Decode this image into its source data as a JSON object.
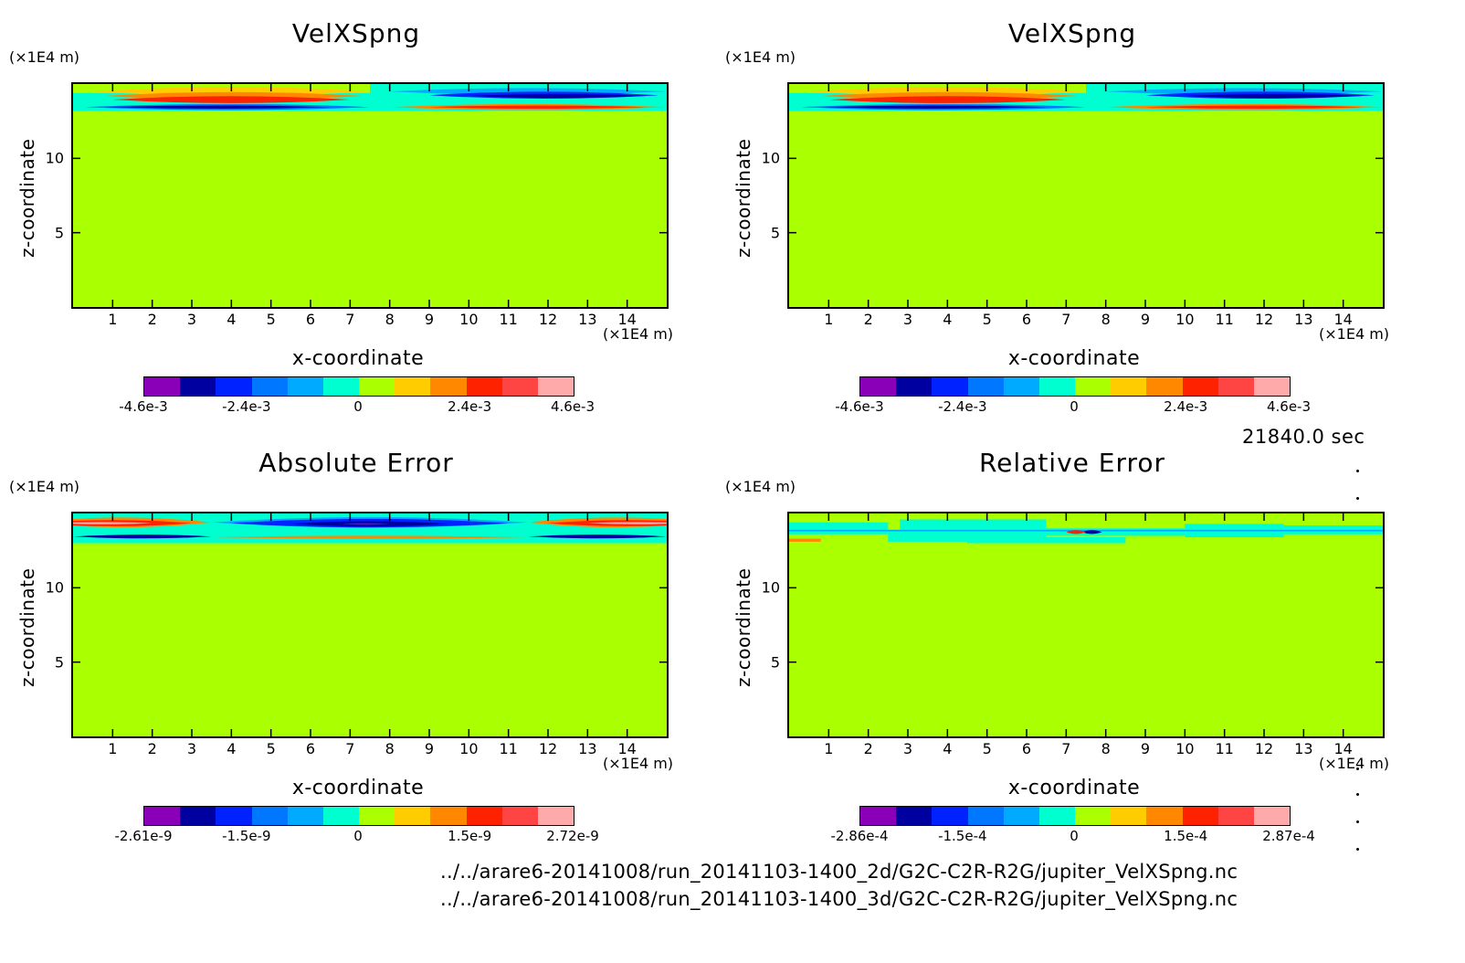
{
  "timestamp": "21840.0 sec",
  "files": [
    "../../arare6-20141008/run_20141103-1400_2d/G2C-C2R-R2G/jupiter_VelXSpng.nc",
    "../../arare6-20141008/run_20141103-1400_3d/G2C-C2R-R2G/jupiter_VelXSpng.nc"
  ],
  "colors": [
    "#8a00b8",
    "#0000a0",
    "#0022ff",
    "#0077ff",
    "#00aaff",
    "#00ffd0",
    "#aaff00",
    "#ffcc00",
    "#ff8800",
    "#ff2200",
    "#ff4444",
    "#ffaaaa"
  ],
  "chart_data": [
    {
      "type": "heatmap",
      "title": "VelXSpng",
      "xlabel": "x-coordinate",
      "ylabel": "z-coordinate",
      "x_unit": "(×1E4 m)",
      "y_unit": "(×1E4 m)",
      "xlim": [
        0,
        15
      ],
      "ylim": [
        0,
        15
      ],
      "x_ticks": [
        "1",
        "2",
        "3",
        "4",
        "5",
        "6",
        "7",
        "8",
        "9",
        "10",
        "11",
        "12",
        "13",
        "14"
      ],
      "y_ticks": [
        "5",
        "10"
      ],
      "colorbar_labels": [
        "-4.6e-3",
        "-2.4e-3",
        "0",
        "2.4e-3",
        "4.6e-3"
      ],
      "pattern": "velxspng"
    },
    {
      "type": "heatmap",
      "title": "VelXSpng",
      "xlabel": "x-coordinate",
      "ylabel": "z-coordinate",
      "x_unit": "(×1E4 m)",
      "y_unit": "(×1E4 m)",
      "xlim": [
        0,
        15
      ],
      "ylim": [
        0,
        15
      ],
      "x_ticks": [
        "1",
        "2",
        "3",
        "4",
        "5",
        "6",
        "7",
        "8",
        "9",
        "10",
        "11",
        "12",
        "13",
        "14"
      ],
      "y_ticks": [
        "5",
        "10"
      ],
      "colorbar_labels": [
        "-4.6e-3",
        "-2.4e-3",
        "0",
        "2.4e-3",
        "4.6e-3"
      ],
      "pattern": "velxspng"
    },
    {
      "type": "heatmap",
      "title": "Absolute Error",
      "xlabel": "x-coordinate",
      "ylabel": "z-coordinate",
      "x_unit": "(×1E4 m)",
      "y_unit": "(×1E4 m)",
      "xlim": [
        0,
        15
      ],
      "ylim": [
        0,
        15
      ],
      "x_ticks": [
        "1",
        "2",
        "3",
        "4",
        "5",
        "6",
        "7",
        "8",
        "9",
        "10",
        "11",
        "12",
        "13",
        "14"
      ],
      "y_ticks": [
        "5",
        "10"
      ],
      "colorbar_labels": [
        "-2.61e-9",
        "-1.5e-9",
        "0",
        "1.5e-9",
        "2.72e-9"
      ],
      "pattern": "abserror"
    },
    {
      "type": "heatmap",
      "title": "Relative Error",
      "xlabel": "x-coordinate",
      "ylabel": "z-coordinate",
      "x_unit": "(×1E4 m)",
      "y_unit": "(×1E4 m)",
      "xlim": [
        0,
        15
      ],
      "ylim": [
        0,
        15
      ],
      "x_ticks": [
        "1",
        "2",
        "3",
        "4",
        "5",
        "6",
        "7",
        "8",
        "9",
        "10",
        "11",
        "12",
        "13",
        "14"
      ],
      "y_ticks": [
        "5",
        "10"
      ],
      "colorbar_labels": [
        "-2.86e-4",
        "-1.5e-4",
        "0",
        "1.5e-4",
        "2.87e-4"
      ],
      "pattern": "relerror"
    }
  ]
}
